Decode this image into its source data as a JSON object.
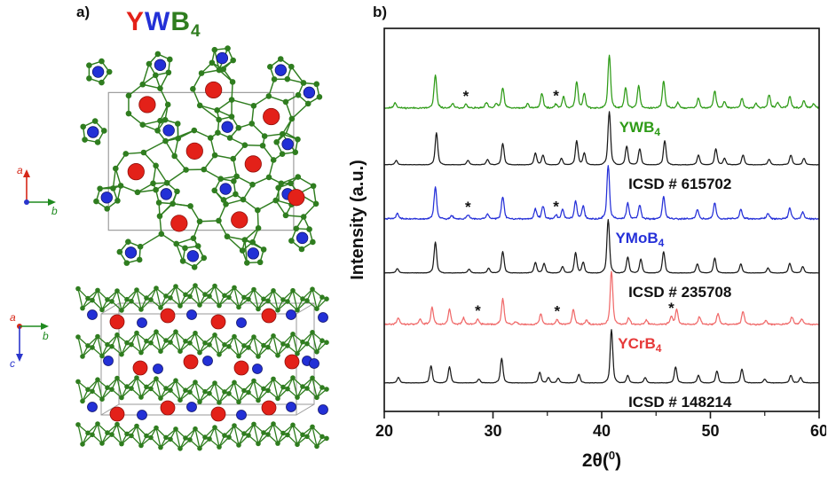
{
  "figure": {
    "panel_a_label": "a)",
    "panel_b_label": "b)"
  },
  "structure": {
    "title": {
      "y": "Y",
      "w": "W",
      "b": "B",
      "sub": "4"
    },
    "atom_colors": {
      "Y": "#e32119",
      "W": "#2330d6",
      "B": "#2f7d1f"
    },
    "unit_cell_color": "#9a9a9a",
    "axes_top": {
      "a": "a",
      "b": "b"
    },
    "axes_bottom": {
      "a": "a",
      "b": "b",
      "c": "c"
    }
  },
  "chart_data": {
    "type": "line",
    "title": "",
    "xlabel": {
      "pre": "2θ(",
      "sup": "0",
      "post": ")"
    },
    "ylabel": "Intensity (a.u.)",
    "xlim": [
      20,
      60
    ],
    "x_ticks": [
      20,
      30,
      40,
      50,
      60
    ],
    "x_minor_ticks": [
      25,
      35,
      45,
      55
    ],
    "grid": false,
    "legend_position": "inline-right-below-each-trace",
    "series": [
      {
        "name": "YWB4",
        "label_base": "YWB",
        "label_sub": "4",
        "color": "#2e9b17",
        "label_color": "#2e9b17",
        "label_x": 43.5,
        "noise": 0.014,
        "peaks": [
          [
            21.0,
            0.1
          ],
          [
            24.7,
            0.62
          ],
          [
            26.3,
            0.08
          ],
          [
            27.5,
            0.07
          ],
          [
            29.4,
            0.1
          ],
          [
            30.3,
            0.08
          ],
          [
            30.9,
            0.38
          ],
          [
            33.2,
            0.08
          ],
          [
            34.5,
            0.28
          ],
          [
            35.8,
            0.07
          ],
          [
            36.5,
            0.22
          ],
          [
            37.7,
            0.5
          ],
          [
            38.4,
            0.28
          ],
          [
            40.7,
            1.0
          ],
          [
            42.2,
            0.38
          ],
          [
            43.4,
            0.42
          ],
          [
            45.7,
            0.5
          ],
          [
            47.0,
            0.1
          ],
          [
            48.9,
            0.18
          ],
          [
            50.4,
            0.32
          ],
          [
            51.3,
            0.12
          ],
          [
            52.9,
            0.18
          ],
          [
            54.2,
            0.08
          ],
          [
            55.4,
            0.25
          ],
          [
            56.2,
            0.1
          ],
          [
            57.3,
            0.22
          ],
          [
            58.6,
            0.14
          ],
          [
            59.5,
            0.08
          ]
        ],
        "asterisks": [
          27.5,
          35.8
        ]
      },
      {
        "name": "ICSD-615702",
        "label_base": "ICSD # 615702",
        "label_sub": "",
        "color": "#1a1a1a",
        "label_color": "#111111",
        "label_x": 47.2,
        "noise": 0.004,
        "peaks": [
          [
            21.1,
            0.08
          ],
          [
            24.8,
            0.6
          ],
          [
            27.7,
            0.08
          ],
          [
            29.5,
            0.1
          ],
          [
            30.9,
            0.4
          ],
          [
            33.9,
            0.22
          ],
          [
            34.6,
            0.18
          ],
          [
            36.3,
            0.12
          ],
          [
            37.7,
            0.45
          ],
          [
            38.4,
            0.22
          ],
          [
            40.7,
            1.0
          ],
          [
            42.3,
            0.35
          ],
          [
            43.5,
            0.3
          ],
          [
            45.8,
            0.45
          ],
          [
            48.9,
            0.18
          ],
          [
            50.5,
            0.3
          ],
          [
            51.3,
            0.12
          ],
          [
            53.0,
            0.18
          ],
          [
            55.4,
            0.1
          ],
          [
            57.4,
            0.18
          ],
          [
            58.6,
            0.12
          ]
        ],
        "asterisks": []
      },
      {
        "name": "YMoB4",
        "label_base": "YMoB",
        "label_sub": "4",
        "color": "#2530d8",
        "label_color": "#2530d8",
        "label_x": 43.5,
        "noise": 0.014,
        "peaks": [
          [
            21.2,
            0.1
          ],
          [
            24.7,
            0.6
          ],
          [
            26.2,
            0.06
          ],
          [
            27.7,
            0.07
          ],
          [
            29.5,
            0.09
          ],
          [
            30.9,
            0.42
          ],
          [
            33.9,
            0.18
          ],
          [
            34.6,
            0.24
          ],
          [
            35.8,
            0.07
          ],
          [
            36.4,
            0.18
          ],
          [
            37.6,
            0.34
          ],
          [
            38.3,
            0.24
          ],
          [
            40.6,
            1.0
          ],
          [
            42.4,
            0.3
          ],
          [
            43.5,
            0.26
          ],
          [
            45.7,
            0.42
          ],
          [
            48.8,
            0.18
          ],
          [
            50.4,
            0.3
          ],
          [
            52.8,
            0.18
          ],
          [
            55.3,
            0.1
          ],
          [
            57.3,
            0.2
          ],
          [
            58.5,
            0.13
          ]
        ],
        "asterisks": [
          27.7,
          35.8
        ]
      },
      {
        "name": "ICSD-235708",
        "label_base": "ICSD # 235708",
        "label_sub": "",
        "color": "#1a1a1a",
        "label_color": "#111111",
        "label_x": 47.2,
        "noise": 0.004,
        "peaks": [
          [
            21.2,
            0.08
          ],
          [
            24.7,
            0.58
          ],
          [
            27.8,
            0.07
          ],
          [
            29.6,
            0.09
          ],
          [
            30.9,
            0.4
          ],
          [
            33.9,
            0.2
          ],
          [
            34.7,
            0.18
          ],
          [
            36.4,
            0.12
          ],
          [
            37.6,
            0.38
          ],
          [
            38.3,
            0.2
          ],
          [
            40.6,
            1.0
          ],
          [
            42.4,
            0.3
          ],
          [
            43.6,
            0.26
          ],
          [
            45.7,
            0.4
          ],
          [
            48.8,
            0.17
          ],
          [
            50.4,
            0.28
          ],
          [
            52.8,
            0.17
          ],
          [
            55.3,
            0.09
          ],
          [
            57.3,
            0.18
          ],
          [
            58.5,
            0.12
          ]
        ],
        "asterisks": []
      },
      {
        "name": "YCrB4",
        "label_base": "YCrB",
        "label_sub": "4",
        "color": "#f06a6a",
        "label_color": "#e63939",
        "label_x": 43.5,
        "noise": 0.014,
        "peaks": [
          [
            21.3,
            0.12
          ],
          [
            23.3,
            0.1
          ],
          [
            24.4,
            0.32
          ],
          [
            26.0,
            0.28
          ],
          [
            27.3,
            0.12
          ],
          [
            28.6,
            0.1
          ],
          [
            30.9,
            0.48
          ],
          [
            32.1,
            0.06
          ],
          [
            34.4,
            0.2
          ],
          [
            35.9,
            0.09
          ],
          [
            37.4,
            0.28
          ],
          [
            38.6,
            0.08
          ],
          [
            40.9,
            1.0
          ],
          [
            42.5,
            0.12
          ],
          [
            44.1,
            0.08
          ],
          [
            46.4,
            0.14
          ],
          [
            46.9,
            0.28
          ],
          [
            49.0,
            0.14
          ],
          [
            50.7,
            0.2
          ],
          [
            53.0,
            0.24
          ],
          [
            55.1,
            0.07
          ],
          [
            57.5,
            0.14
          ],
          [
            58.4,
            0.1
          ]
        ],
        "asterisks": [
          28.6,
          35.9,
          46.4
        ]
      },
      {
        "name": "ICSD-148214",
        "label_base": "ICSD # 148214",
        "label_sub": "",
        "color": "#1a1a1a",
        "label_color": "#111111",
        "label_x": 47.2,
        "noise": 0.004,
        "peaks": [
          [
            21.3,
            0.1
          ],
          [
            24.3,
            0.32
          ],
          [
            26.0,
            0.3
          ],
          [
            28.7,
            0.07
          ],
          [
            30.8,
            0.46
          ],
          [
            34.3,
            0.2
          ],
          [
            35.1,
            0.1
          ],
          [
            36.0,
            0.09
          ],
          [
            37.9,
            0.16
          ],
          [
            40.9,
            1.0
          ],
          [
            42.4,
            0.14
          ],
          [
            44.0,
            0.1
          ],
          [
            46.8,
            0.3
          ],
          [
            48.9,
            0.14
          ],
          [
            50.6,
            0.22
          ],
          [
            52.9,
            0.26
          ],
          [
            55.0,
            0.07
          ],
          [
            57.4,
            0.14
          ],
          [
            58.3,
            0.1
          ]
        ],
        "asterisks": []
      }
    ]
  }
}
